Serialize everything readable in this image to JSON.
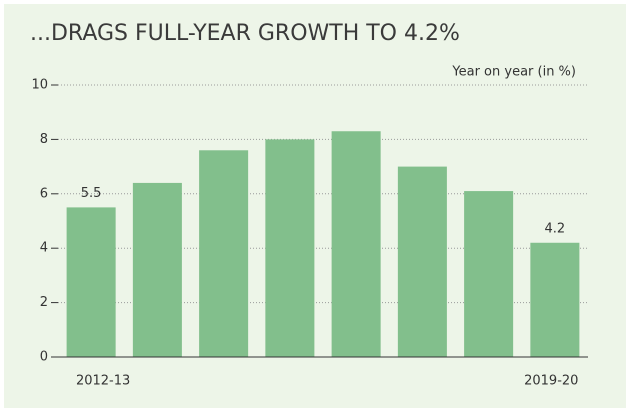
{
  "chart_data": {
    "type": "bar",
    "title": "...DRAGS FULL-YEAR GROWTH TO 4.2%",
    "y_axis_label": "Year on year (in %)",
    "categories": [
      "2012-13",
      null,
      null,
      null,
      null,
      null,
      null,
      "2019-20"
    ],
    "values": [
      5.5,
      6.4,
      7.6,
      8.0,
      8.3,
      7.0,
      6.1,
      4.2
    ],
    "value_labels": [
      "5.5",
      null,
      null,
      null,
      null,
      null,
      null,
      "4.2"
    ],
    "color": "#82bf8c",
    "ylim": [
      0,
      10
    ],
    "yticks": [
      0,
      2,
      4,
      6,
      8,
      10
    ],
    "grid": true
  }
}
